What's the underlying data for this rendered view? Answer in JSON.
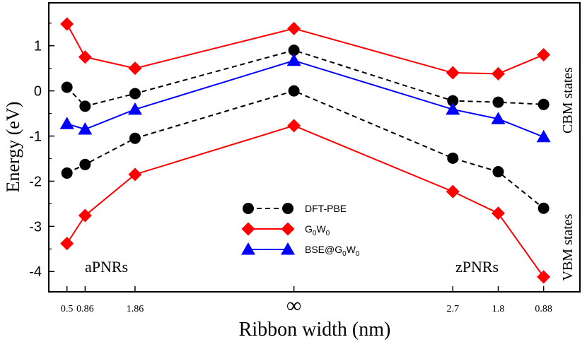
{
  "chart_data": {
    "type": "line",
    "xlabel": "Ribbon width (nm)",
    "ylabel": "Energy (eV)",
    "ylim": [
      -4.45,
      1.95
    ],
    "yticks": [
      1,
      0,
      -1,
      -2,
      -3,
      -4
    ],
    "ytick_labels": [
      "1",
      "0",
      "-1",
      "-2",
      "-3",
      "-4"
    ],
    "categories": [
      "0.5",
      "0.86",
      "1.86",
      "∞",
      "2.7",
      "1.8",
      "0.88"
    ],
    "x_positions": [
      0,
      0.4,
      1.5,
      5,
      8.5,
      9.5,
      10.5
    ],
    "xlim": [
      -0.4,
      11.3
    ],
    "annotations": {
      "left_group": "aPNRs",
      "right_group": "zPNRs",
      "cbm": "CBM states",
      "vbm": "VBM states"
    },
    "legend": {
      "position": "center-bottom",
      "entries": [
        {
          "series": "DFT-PBE",
          "label": "DFT-PBE",
          "base": "DFT-PBE",
          "sub1": "",
          "mid": "",
          "sub2": ""
        },
        {
          "series": "G0W0",
          "label": "G0W0",
          "base": "G",
          "sub1": "0",
          "mid": "W",
          "sub2": "0"
        },
        {
          "series": "BSE@G0W0",
          "label": "BSE@G0W0",
          "base": "BSE@G",
          "sub1": "0",
          "mid": "W",
          "sub2": "0"
        }
      ]
    },
    "series": [
      {
        "name": "DFT-PBE CBM",
        "group": "DFT-PBE",
        "marker": "circle",
        "color": "#000000",
        "dash": true,
        "values": [
          0.08,
          -0.34,
          -0.06,
          0.9,
          -0.22,
          -0.25,
          -0.3
        ]
      },
      {
        "name": "DFT-PBE VBM",
        "group": "DFT-PBE",
        "marker": "circle",
        "color": "#000000",
        "dash": true,
        "values": [
          -1.82,
          -1.63,
          -1.05,
          0.0,
          -1.49,
          -1.79,
          -2.6
        ]
      },
      {
        "name": "G0W0 CBM",
        "group": "G0W0",
        "marker": "diamond",
        "color": "#ff0000",
        "dash": false,
        "values": [
          1.48,
          0.75,
          0.5,
          1.38,
          0.4,
          0.38,
          0.8
        ]
      },
      {
        "name": "G0W0 VBM",
        "group": "G0W0",
        "marker": "diamond",
        "color": "#ff0000",
        "dash": false,
        "values": [
          -3.38,
          -2.76,
          -1.85,
          -0.77,
          -2.23,
          -2.71,
          -4.12
        ]
      },
      {
        "name": "BSE@G0W0",
        "group": "BSE@G0W0",
        "marker": "triangle",
        "color": "#0000ff",
        "dash": false,
        "values": [
          -0.73,
          -0.85,
          -0.41,
          0.67,
          -0.41,
          -0.62,
          -1.02
        ]
      }
    ]
  }
}
